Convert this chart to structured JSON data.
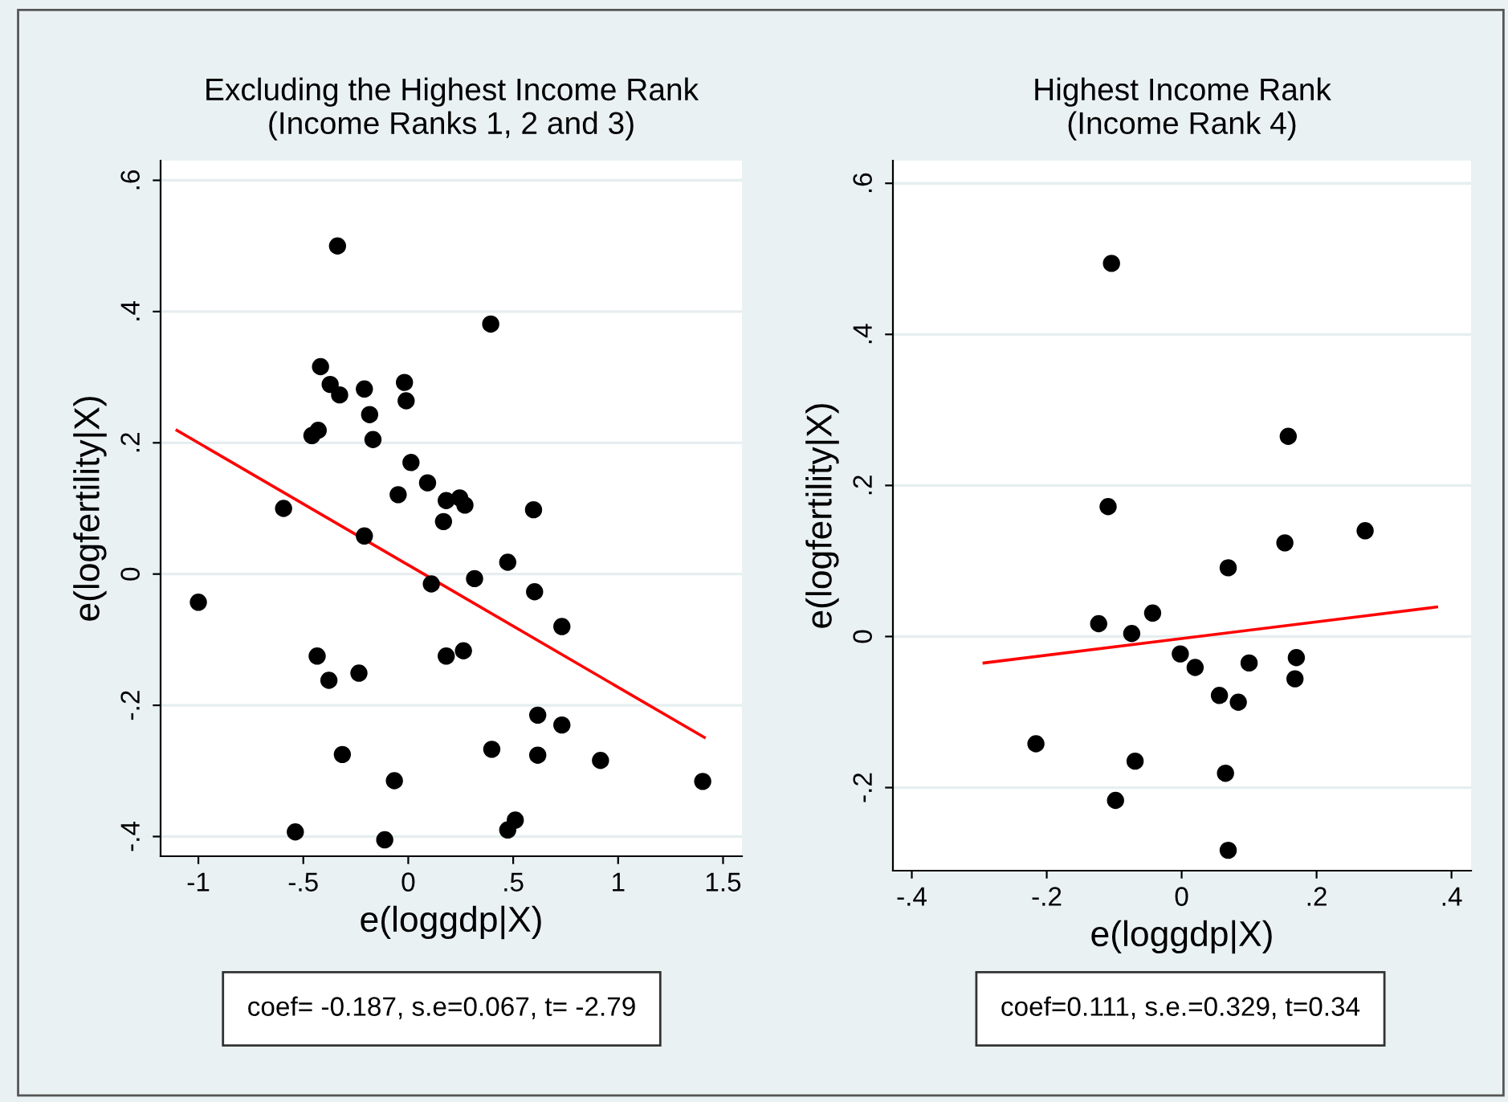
{
  "chart_data": [
    {
      "type": "scatter",
      "title": "Excluding the Highest Income Rank\n(Income Ranks 1, 2 and 3)",
      "xlabel": "e(loggdp|X)",
      "ylabel": "e(logfertility|X)",
      "xlim": [
        -1.18,
        1.59
      ],
      "ylim": [
        -0.43,
        0.63
      ],
      "xticks": [
        {
          "value": -1,
          "label": "-1"
        },
        {
          "value": -0.5,
          "label": "-.5"
        },
        {
          "value": 0,
          "label": "0"
        },
        {
          "value": 0.5,
          "label": ".5"
        },
        {
          "value": 1,
          "label": "1"
        },
        {
          "value": 1.5,
          "label": "1.5"
        }
      ],
      "yticks": [
        {
          "value": -0.4,
          "label": "-.4"
        },
        {
          "value": -0.2,
          "label": "-.2"
        },
        {
          "value": 0,
          "label": "0"
        },
        {
          "value": 0.2,
          "label": ".2"
        },
        {
          "value": 0.4,
          "label": ".4"
        },
        {
          "value": 0.6,
          "label": ".6"
        }
      ],
      "grid": "y",
      "annotations": [
        "coef= -0.187, s.e=0.067, t= -2.79"
      ],
      "series": [
        {
          "marker": "circle",
          "color": "#000000",
          "x": [
            -1.0,
            -0.594,
            -0.538,
            -0.459,
            -0.429,
            -0.418,
            -0.434,
            -0.378,
            -0.372,
            -0.337,
            -0.327,
            -0.314,
            -0.235,
            -0.209,
            -0.209,
            -0.184,
            -0.168,
            -0.066,
            -0.112,
            -0.048,
            -0.018,
            -0.01,
            0.013,
            0.092,
            0.11,
            0.168,
            0.181,
            0.181,
            0.245,
            0.27,
            0.263,
            0.316,
            0.393,
            0.398,
            0.474,
            0.474,
            0.51,
            0.597,
            0.602,
            0.617,
            0.617,
            0.732,
            0.732,
            0.916,
            1.403
          ],
          "values": [
            -0.043,
            0.1,
            -0.393,
            0.211,
            0.219,
            0.316,
            -0.125,
            -0.162,
            0.289,
            0.5,
            0.273,
            -0.275,
            -0.151,
            0.282,
            0.058,
            0.243,
            0.205,
            -0.315,
            -0.405,
            0.121,
            0.292,
            0.264,
            0.17,
            0.139,
            -0.015,
            0.08,
            0.112,
            -0.125,
            0.116,
            0.105,
            -0.117,
            -0.007,
            0.381,
            -0.267,
            0.018,
            -0.39,
            -0.375,
            0.098,
            -0.027,
            -0.215,
            -0.276,
            -0.08,
            -0.23,
            -0.284,
            -0.316
          ]
        },
        {
          "type": "line",
          "marker": "none",
          "color": "#ff0000",
          "x": [
            -1.102,
            1.411
          ],
          "values": [
            0.219,
            -0.249
          ]
        }
      ]
    },
    {
      "type": "scatter",
      "title": "Highest Income Rank\n(Income Rank 4)",
      "xlabel": "e(loggdp|X)",
      "ylabel": "e(logfertility|X)",
      "xlim": [
        -0.428,
        0.429
      ],
      "ylim": [
        -0.31,
        0.63
      ],
      "xticks": [
        {
          "value": -0.4,
          "label": "-.4"
        },
        {
          "value": -0.2,
          "label": "-.2"
        },
        {
          "value": 0,
          "label": "0"
        },
        {
          "value": 0.2,
          "label": ".2"
        },
        {
          "value": 0.4,
          "label": ".4"
        }
      ],
      "yticks": [
        {
          "value": -0.2,
          "label": "-.2"
        },
        {
          "value": 0,
          "label": "0"
        },
        {
          "value": 0.2,
          "label": ".2"
        },
        {
          "value": 0.4,
          "label": ".4"
        },
        {
          "value": 0.6,
          "label": ".6"
        }
      ],
      "grid": "y",
      "annotations": [
        "coef=0.111, s.e.=0.329, t=0.34"
      ],
      "series": [
        {
          "marker": "circle",
          "color": "#000000",
          "x": [
            -0.104,
            -0.109,
            0.158,
            0.272,
            0.153,
            0.069,
            -0.123,
            -0.074,
            -0.043,
            -0.002,
            0.02,
            0.1,
            0.17,
            0.168,
            0.056,
            0.084,
            -0.216,
            -0.069,
            0.065,
            -0.098,
            0.069
          ],
          "values": [
            0.494,
            0.172,
            0.265,
            0.14,
            0.124,
            0.091,
            0.017,
            0.004,
            0.031,
            -0.023,
            -0.041,
            -0.035,
            -0.028,
            -0.056,
            -0.078,
            -0.087,
            -0.142,
            -0.165,
            -0.181,
            -0.217,
            -0.283
          ]
        },
        {
          "type": "line",
          "marker": "none",
          "color": "#ff0000",
          "x": [
            -0.293,
            0.378
          ],
          "values": [
            -0.035,
            0.039
          ]
        }
      ]
    }
  ]
}
